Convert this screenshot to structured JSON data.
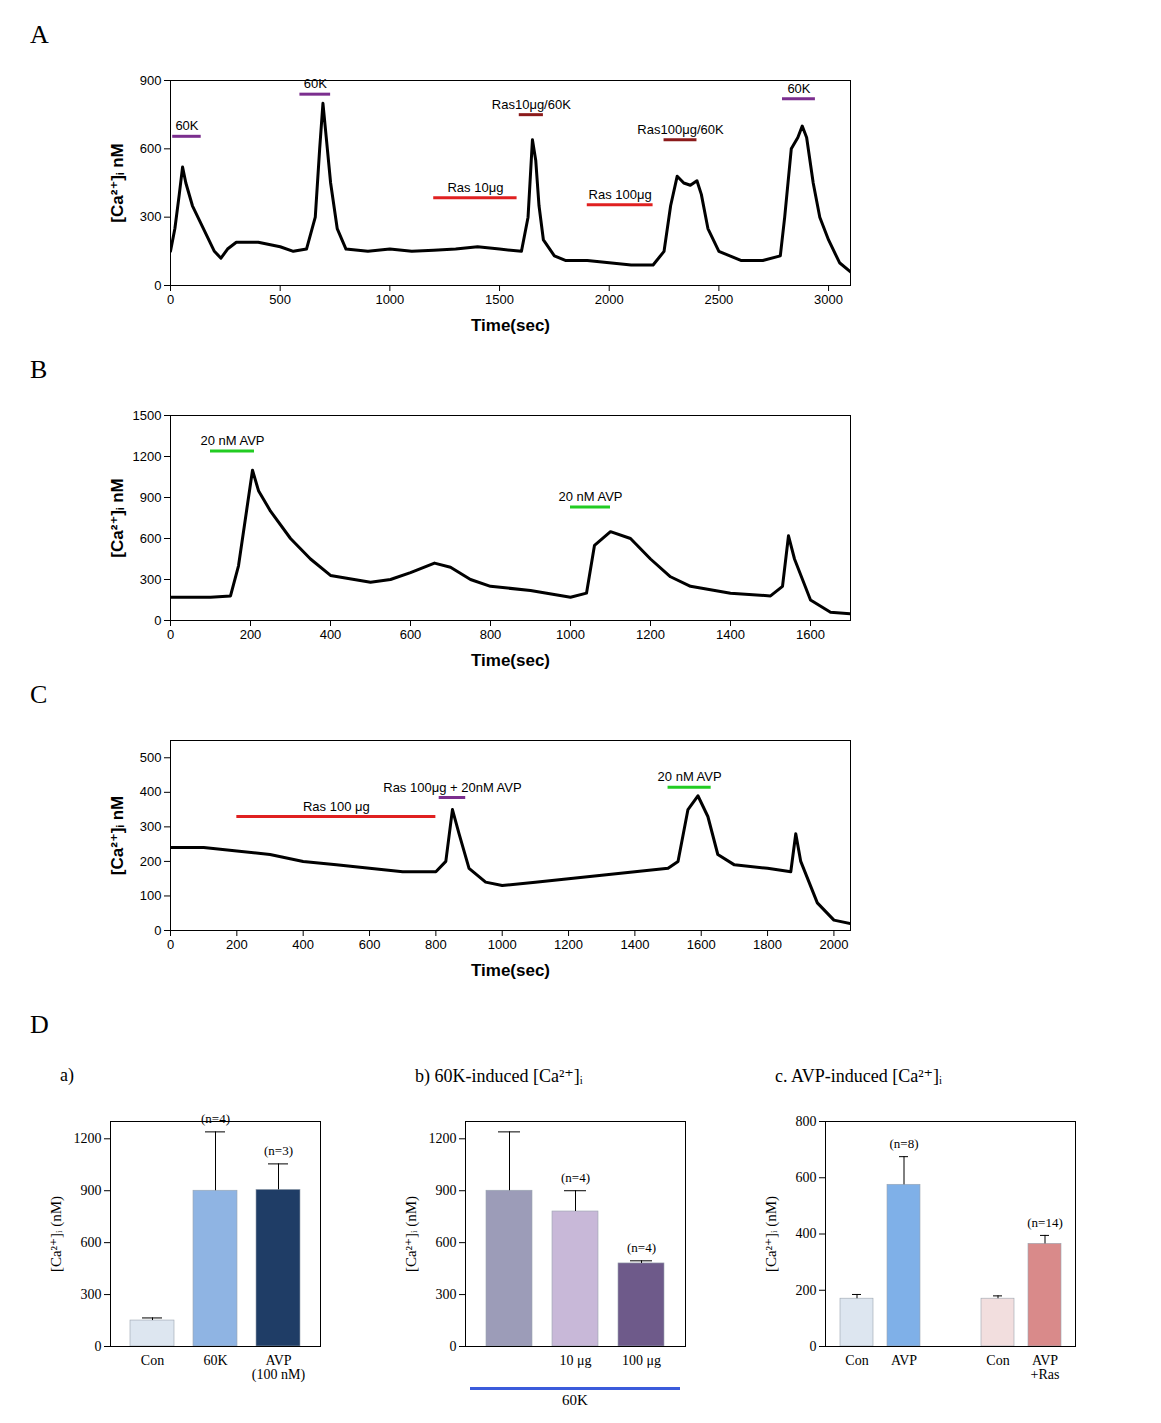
{
  "chart_data": [
    {
      "type": "line",
      "panel": "A",
      "color": "#000000",
      "xlabel": "Time(sec)",
      "ylabel": "[Ca²⁺]ᵢ nM",
      "xlim": [
        0,
        3100
      ],
      "xticks": [
        0,
        500,
        1000,
        1500,
        2000,
        2500,
        3000
      ],
      "ylim": [
        0,
        900
      ],
      "yticks": [
        0,
        300,
        600,
        900
      ],
      "x": [
        0,
        20,
        40,
        55,
        70,
        100,
        150,
        200,
        230,
        260,
        300,
        400,
        500,
        560,
        620,
        660,
        680,
        695,
        710,
        730,
        760,
        800,
        900,
        1000,
        1100,
        1200,
        1300,
        1400,
        1500,
        1600,
        1630,
        1650,
        1665,
        1680,
        1700,
        1750,
        1800,
        1900,
        2000,
        2100,
        2200,
        2250,
        2280,
        2310,
        2340,
        2370,
        2400,
        2420,
        2450,
        2500,
        2600,
        2700,
        2780,
        2800,
        2830,
        2860,
        2880,
        2900,
        2930,
        2960,
        3000,
        3050,
        3100
      ],
      "values": [
        150,
        250,
        400,
        520,
        450,
        350,
        250,
        150,
        120,
        160,
        190,
        190,
        170,
        150,
        160,
        300,
        600,
        800,
        650,
        450,
        250,
        160,
        150,
        160,
        150,
        155,
        160,
        170,
        160,
        150,
        300,
        640,
        550,
        350,
        200,
        130,
        110,
        110,
        100,
        90,
        90,
        150,
        350,
        480,
        450,
        440,
        460,
        400,
        250,
        150,
        110,
        110,
        130,
        300,
        600,
        650,
        700,
        650,
        450,
        300,
        200,
        100,
        60
      ],
      "annotations": [
        {
          "text": "60K",
          "x1": 10,
          "x2": 140,
          "y": 655,
          "color": "#7b2e8e"
        },
        {
          "text": "60K",
          "x1": 590,
          "x2": 730,
          "y": 840,
          "color": "#7b2e8e"
        },
        {
          "text": "Ras 10μg",
          "x1": 1200,
          "x2": 1580,
          "y": 385,
          "color": "#e02020"
        },
        {
          "text": "Ras10μg/60K",
          "x1": 1590,
          "x2": 1700,
          "y": 750,
          "color": "#8b1a1a"
        },
        {
          "text": "Ras 100μg",
          "x1": 1900,
          "x2": 2200,
          "y": 355,
          "color": "#e02020"
        },
        {
          "text": "Ras100μg/60K",
          "x1": 2250,
          "x2": 2400,
          "y": 640,
          "color": "#8b1a1a"
        },
        {
          "text": "60K",
          "x1": 2790,
          "x2": 2940,
          "y": 820,
          "color": "#7b2e8e"
        }
      ]
    },
    {
      "type": "line",
      "panel": "B",
      "color": "#000000",
      "xlabel": "Time(sec)",
      "ylabel": "[Ca²⁺]ᵢ nM",
      "xlim": [
        0,
        1700
      ],
      "xticks": [
        0,
        200,
        400,
        600,
        800,
        1000,
        1200,
        1400,
        1600
      ],
      "ylim": [
        0,
        1500
      ],
      "yticks": [
        0,
        300,
        600,
        900,
        1200,
        1500
      ],
      "x": [
        0,
        100,
        150,
        170,
        190,
        205,
        220,
        250,
        300,
        350,
        400,
        500,
        550,
        600,
        660,
        700,
        750,
        800,
        900,
        1000,
        1040,
        1060,
        1100,
        1150,
        1200,
        1250,
        1300,
        1400,
        1500,
        1530,
        1545,
        1560,
        1600,
        1650,
        1700
      ],
      "values": [
        170,
        170,
        180,
        400,
        800,
        1100,
        950,
        800,
        600,
        450,
        330,
        280,
        300,
        350,
        420,
        390,
        300,
        250,
        220,
        170,
        200,
        550,
        650,
        600,
        450,
        320,
        250,
        200,
        180,
        250,
        620,
        450,
        150,
        60,
        50
      ],
      "annotations": [
        {
          "text": "20 nM AVP",
          "x1": 100,
          "x2": 210,
          "y": 1240,
          "color": "#22cc22"
        },
        {
          "text": "20 nM AVP",
          "x1": 1000,
          "x2": 1100,
          "y": 830,
          "color": "#22cc22"
        }
      ]
    },
    {
      "type": "line",
      "panel": "C",
      "color": "#000000",
      "xlabel": "Time(sec)",
      "ylabel": "[Ca²⁺]ᵢ nM",
      "xlim": [
        0,
        2050
      ],
      "xticks": [
        0,
        200,
        400,
        600,
        800,
        1000,
        1200,
        1400,
        1600,
        1800,
        2000
      ],
      "ylim": [
        0,
        550
      ],
      "yticks": [
        0,
        100,
        200,
        300,
        400,
        500
      ],
      "x": [
        0,
        100,
        200,
        300,
        400,
        500,
        600,
        700,
        800,
        830,
        850,
        870,
        900,
        950,
        1000,
        1100,
        1200,
        1300,
        1400,
        1500,
        1530,
        1560,
        1590,
        1620,
        1650,
        1700,
        1800,
        1870,
        1885,
        1900,
        1950,
        2000,
        2050
      ],
      "values": [
        240,
        240,
        230,
        220,
        200,
        190,
        180,
        170,
        170,
        200,
        350,
        280,
        180,
        140,
        130,
        140,
        150,
        160,
        170,
        180,
        200,
        350,
        390,
        330,
        220,
        190,
        180,
        170,
        280,
        200,
        80,
        30,
        20
      ],
      "annotations": [
        {
          "text": "Ras 100 μg",
          "x1": 200,
          "x2": 800,
          "y": 330,
          "color": "#e02020"
        },
        {
          "text": "Ras 100μg + 20nM AVP",
          "x1": 810,
          "x2": 890,
          "y": 385,
          "color": "#7b2e8e"
        },
        {
          "text": "20 nM AVP",
          "x1": 1500,
          "x2": 1630,
          "y": 415,
          "color": "#22cc22"
        }
      ]
    },
    {
      "type": "bar",
      "panel": "D",
      "title": "a)",
      "ylabel": "[Ca²⁺]ᵢ (nM)",
      "categories": [
        "Con",
        "60K",
        "AVP\n(100 nM)"
      ],
      "values": [
        150,
        900,
        905
      ],
      "errors": [
        15,
        340,
        150
      ],
      "n_labels": [
        null,
        "(n=4)",
        "(n=3)"
      ],
      "colors": [
        "#dde6f0",
        "#8fb4e3",
        "#1f3d66"
      ],
      "ylim": [
        0,
        1300
      ],
      "yticks": [
        0,
        300,
        600,
        900,
        1200
      ]
    },
    {
      "type": "bar",
      "title": "b) 60K-induced [Ca²⁺]ᵢ",
      "ylabel": "[Ca²⁺]ᵢ (nM)",
      "categories": [
        null,
        "10 μg",
        "100 μg"
      ],
      "values": [
        900,
        780,
        480
      ],
      "errors": [
        340,
        120,
        15
      ],
      "n_labels": [
        null,
        "(n=4)",
        "(n=4)"
      ],
      "colors": [
        "#9c9cb8",
        "#c8b8d8",
        "#6e5a8a"
      ],
      "ylim": [
        0,
        1300
      ],
      "yticks": [
        0,
        300,
        600,
        900,
        1200
      ],
      "annotations": [
        {
          "text": "60K",
          "color": "#3b5bdb"
        }
      ]
    },
    {
      "type": "bar",
      "title": "c. AVP-induced [Ca²⁺]ᵢ",
      "ylabel": "[Ca²⁺]ᵢ (nM)",
      "categories": [
        "Con",
        "AVP",
        null,
        "Con",
        "AVP\n+Ras"
      ],
      "values": [
        170,
        575,
        null,
        170,
        365
      ],
      "errors": [
        15,
        100,
        null,
        10,
        30
      ],
      "n_labels": [
        null,
        "(n=8)",
        null,
        null,
        "(n=14)"
      ],
      "colors": [
        "#dde6f0",
        "#7fb0e8",
        null,
        "#f2dede",
        "#d98a8a"
      ],
      "ylim": [
        0,
        800
      ],
      "yticks": [
        0,
        200,
        400,
        600,
        800
      ]
    }
  ]
}
